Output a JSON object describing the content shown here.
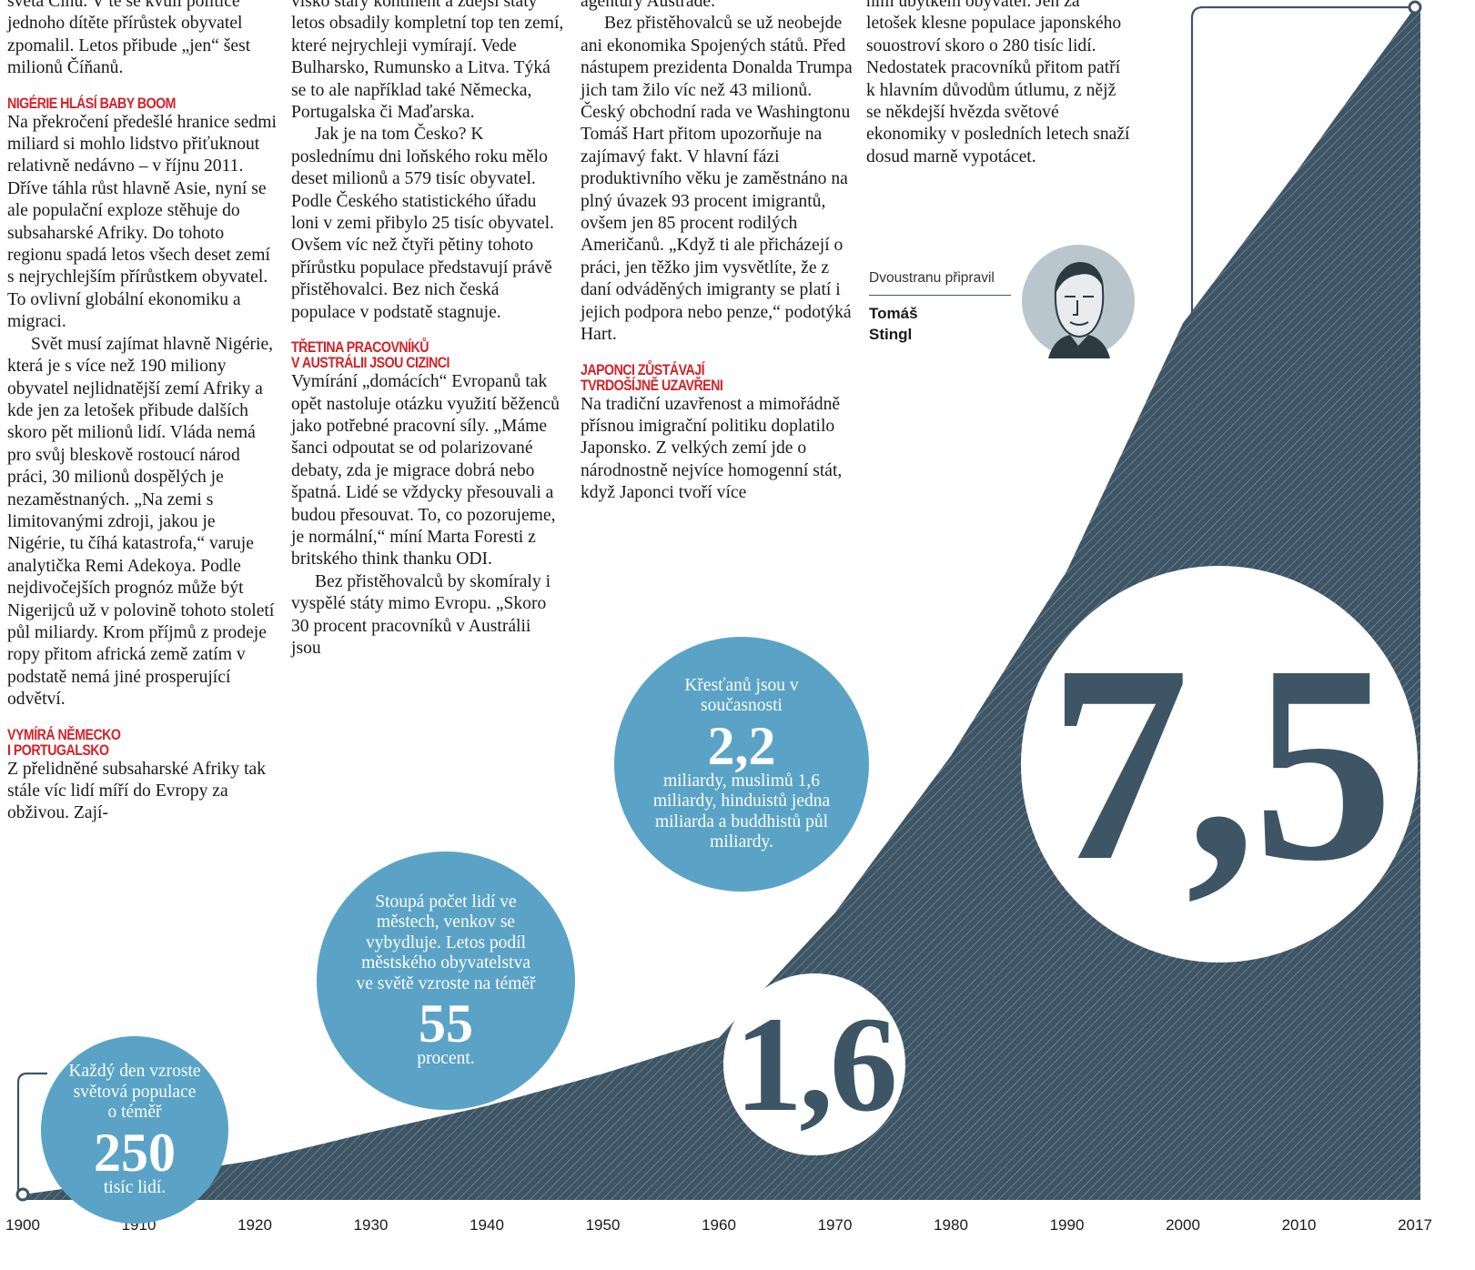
{
  "columns": [
    [
      {
        "paragraph": "světa Čínu. V té se kvůli politice jednoho dítěte přírůstek obyvatel zpomalil. Letos přibude „jen“ šest milionů Číňanů."
      },
      {
        "heading": [
          "NIGÉRIE HLÁSÍ BABY BOOM"
        ]
      },
      {
        "paragraph": "Na překročení předešlé hranice sedmi miliard si mohlo lidstvo přiťuknout relativně nedávno – v říjnu 2011. Dříve táhla růst hlavně Asie, nyní se ale populační exploze stěhuje do subsaharské Afriky. Do tohoto regionu spadá letos všech deset zemí s nejrychlejším přírůstkem obyvatel. To ovlivní globální ekonomiku a migraci."
      },
      {
        "paragraph": "Svět musí zajímat hlavně Nigérie, která je s více než 190 miliony obyvatel nejlidnatější zemí Afriky a kde jen za letošek přibude dalších skoro pět milionů lidí. Vláda nemá pro svůj bleskově rostoucí národ práci, 30 milionů dospělých je nezaměstnaných. „Na zemi s limitovanými zdroji, jakou je Nigérie, tu číhá katastrofa,“ varuje analytička Remi Adekoya. Podle nejdivočejších prognóz může být Nigerijců už v polovině tohoto století půl miliardy. Krom příjmů z prodeje ropy přitom africká země zatím v podstatě nemá jiné prosperující odvětví."
      },
      {
        "heading": [
          "VYMÍRÁ NĚMECKO",
          "I PORTUGALSKO"
        ]
      },
      {
        "paragraph": "Z přelidněné subsaharské Afriky tak stále víc lidí míří do Evropy za obživou. Zají-"
      }
    ],
    [
      {
        "paragraph": "visko starý kontinent a zdejší státy letos obsadily kompletní top ten zemí, které nejrychleji vymírají. Vede Bulharsko, Rumunsko a Litva. Týká se to ale například také Německa, Portugalska či Maďarska."
      },
      {
        "paragraph": "Jak je na tom Česko? K poslednímu dni loňského roku mělo deset milionů a 579 tisíc obyvatel. Podle Českého statistického úřadu loni v zemi přibylo 25 tisíc obyvatel. Ovšem víc než čtyři pětiny tohoto přírůstku populace představují právě přistěhovalci. Bez nich česká populace v podstatě stagnuje."
      },
      {
        "heading": [
          "TŘETINA PRACOVNÍKŮ",
          "V AUSTRÁLII JSOU CIZINCI"
        ]
      },
      {
        "paragraph": "Vymírání „domácích“ Evropanů tak opět nastoluje otázku využití běženců jako potřebné pracovní síly. „Máme šanci odpoutat se od polarizované debaty, zda je migrace dobrá nebo špatná. Lidé se vždycky přesouvali a budou přesouvat. To, co pozorujeme, je normální,“ míní Marta Foresti z britského think thanku ODI."
      },
      {
        "paragraph": "Bez přistěhovalců by skomíraly i vyspělé státy mimo Evropu. „Skoro 30 procent pracovníků v Austrálii jsou"
      }
    ],
    [
      {
        "paragraph": "agentury Austrade."
      },
      {
        "paragraph": "Bez přistěhovalců se už neobejde ani ekonomika Spojených států. Před nástupem prezidenta Donalda Trumpa jich tam žilo víc než 43 milionů. Český obchodní rada ve Washingtonu Tomáš Hart přitom upozorňuje na zajímavý fakt. V hlavní fázi produktivního věku je zaměstnáno na plný úvazek 93 procent imigrantů, ovšem jen 85 procent rodilých Američanů. „Když ti ale přicházejí o práci, jen těžko jim vysvětlíte, že z daní odváděných imigranty se platí i jejich podpora nebo penze,“ podotýká Hart."
      },
      {
        "heading": [
          "JAPONCI ZŮSTÁVAJÍ",
          "TVRDOŠÍJNĚ UZAVŘENI"
        ]
      },
      {
        "paragraph": "Na tradiční uzavřenost a mimořádně přísnou imigrační politiku doplatilo Japonsko. Z velkých zemí jde o národnostně nejvíce homogenní stát, když Japonci tvoří více"
      }
    ],
    [
      {
        "paragraph": "ním úbytkem obyvatel. Jen za letošek klesne populace japonského souostroví skoro o 280 tisíc lidí. Nedostatek pracovníků přitom patří k hlavním důvodům útlumu, z nějž se někdejší hvězda světové ekonomiky v posledních letech snaží dosud marně vypotácet."
      }
    ]
  ],
  "byline": {
    "label": "Dvoustranu připravil",
    "name": "Tomáš Stingl"
  },
  "bubbles": [
    {
      "text": "Každý den vzroste světová populace o téměř",
      "number": "250",
      "after": "tisíc lidí."
    },
    {
      "text": "Stoupá počet lidí ve městech, venkov se vybydluje. Letos podíl městského obyvatelstva ve světě vzroste na téměř",
      "number": "55",
      "after": "procent."
    },
    {
      "text": "Křesťanů jsou v současnosti",
      "number": "2,2",
      "after": "miliardy, muslimů 1,6 miliardy, hinduistů jedna miliarda a buddhistů půl miliardy."
    }
  ],
  "chart_data": {
    "type": "area",
    "categories": [
      "1900",
      "1910",
      "1920",
      "1930",
      "1940",
      "1950",
      "1960",
      "1970",
      "1980",
      "1990",
      "2000",
      "2010",
      "2017"
    ],
    "values": [
      1.6,
      1.68,
      1.77,
      1.91,
      2.04,
      2.2,
      2.38,
      3.0,
      3.78,
      4.7,
      5.93,
      6.7,
      7.5
    ],
    "value_labels": [
      "1,6",
      null,
      null,
      null,
      null,
      null,
      null,
      null,
      null,
      null,
      null,
      null,
      "7,5"
    ],
    "ylim": [
      1.6,
      7.5
    ],
    "color": "#3e5565"
  }
}
